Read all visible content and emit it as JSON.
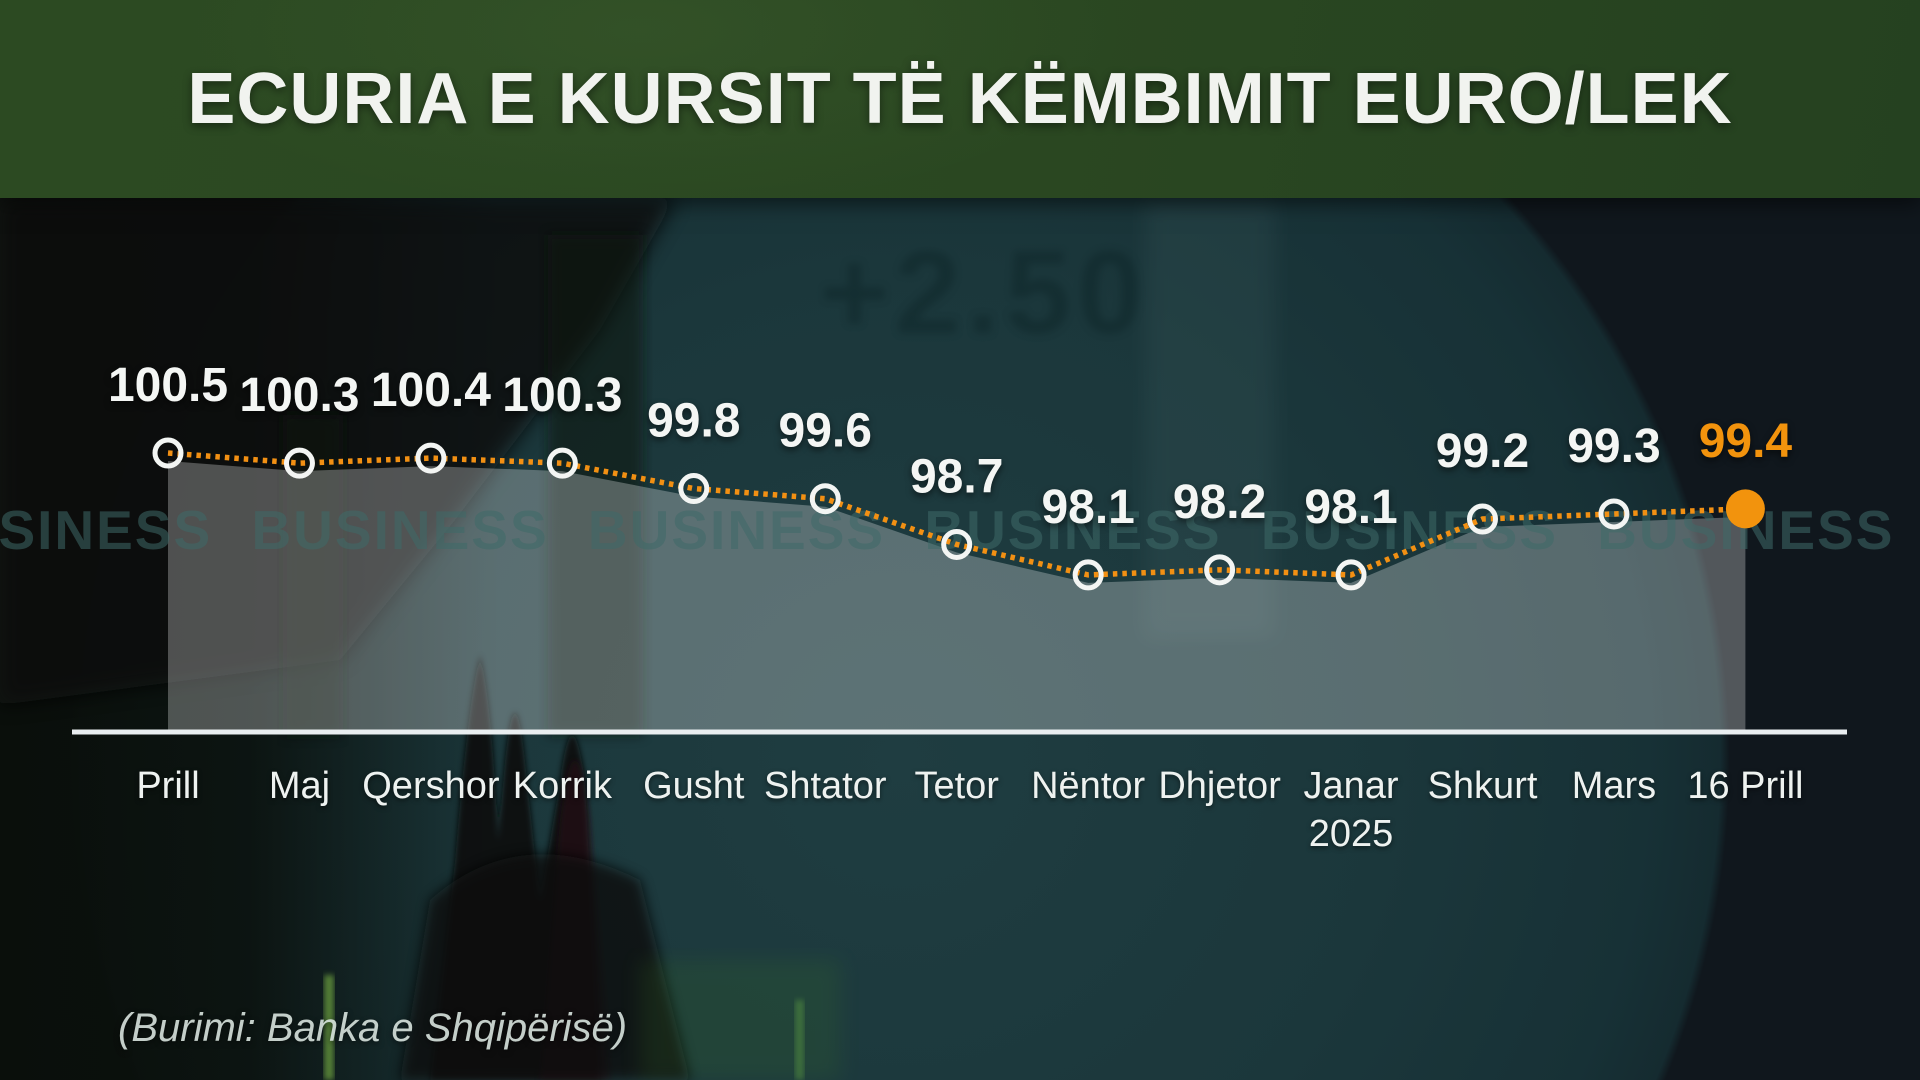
{
  "title": "ECURIA E KURSIT TË KËMBIMIT EURO/LEK",
  "source": "(Burimi: Banka e Shqipërisë)",
  "background": {
    "watermark_word": "BUSINESS",
    "watermark_repeats": 13,
    "faint_text": "+2.50"
  },
  "colors": {
    "banner_green": "#2a4721",
    "accent_orange": "#f29013",
    "highlight_orange": "#f2930d",
    "label_white": "#f4f6f4",
    "axis_white": "#e9eef0",
    "marker_ring": "#f3f5f3",
    "area_fill": "rgba(255,255,255,0.28)",
    "watermark_teal": "rgba(62,105,104,0.55)"
  },
  "chart_data": {
    "type": "line",
    "line_style": "dotted",
    "title": "ECURIA E KURSIT TË KËMBIMIT EURO/LEK",
    "xlabel": "",
    "ylabel": "",
    "grid": false,
    "legend": false,
    "ylim": [
      97.5,
      101.0
    ],
    "categories": [
      {
        "label": "Prill"
      },
      {
        "label": "Maj"
      },
      {
        "label": "Qershor"
      },
      {
        "label": "Korrik"
      },
      {
        "label": "Gusht"
      },
      {
        "label": "Shtator"
      },
      {
        "label": "Tetor"
      },
      {
        "label": "Nëntor"
      },
      {
        "label": "Dhjetor"
      },
      {
        "label": "Janar",
        "line2": "2025"
      },
      {
        "label": "Shkurt"
      },
      {
        "label": "Mars"
      },
      {
        "label": "16 Prill"
      }
    ],
    "values": [
      100.5,
      100.3,
      100.4,
      100.3,
      99.8,
      99.6,
      98.7,
      98.1,
      98.2,
      98.1,
      99.2,
      99.3,
      99.4
    ],
    "highlight_last_point": true,
    "data_labels_shown": true
  }
}
